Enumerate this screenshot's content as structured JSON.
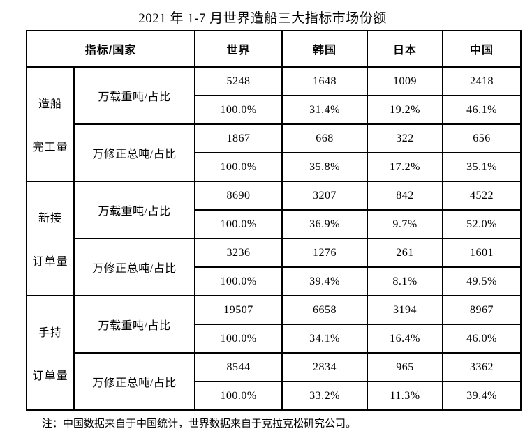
{
  "title": "2021 年 1-7 月世界造船三大指标市场份额",
  "table": {
    "header": {
      "indicator_country": "指标/国家",
      "columns": [
        "世界",
        "韩国",
        "日本",
        "中国"
      ]
    },
    "groups": [
      {
        "name_lines": [
          "造船",
          "完工量"
        ],
        "metrics": [
          {
            "label": "万载重吨/占比",
            "values": [
              "5248",
              "1648",
              "1009",
              "2418"
            ],
            "shares": [
              "100.0%",
              "31.4%",
              "19.2%",
              "46.1%"
            ]
          },
          {
            "label": "万修正总吨/占比",
            "values": [
              "1867",
              "668",
              "322",
              "656"
            ],
            "shares": [
              "100.0%",
              "35.8%",
              "17.2%",
              "35.1%"
            ]
          }
        ]
      },
      {
        "name_lines": [
          "新接",
          "订单量"
        ],
        "metrics": [
          {
            "label": "万载重吨/占比",
            "values": [
              "8690",
              "3207",
              "842",
              "4522"
            ],
            "shares": [
              "100.0%",
              "36.9%",
              "9.7%",
              "52.0%"
            ]
          },
          {
            "label": "万修正总吨/占比",
            "values": [
              "3236",
              "1276",
              "261",
              "1601"
            ],
            "shares": [
              "100.0%",
              "39.4%",
              "8.1%",
              "49.5%"
            ]
          }
        ]
      },
      {
        "name_lines": [
          "手持",
          "订单量"
        ],
        "metrics": [
          {
            "label": "万载重吨/占比",
            "values": [
              "19507",
              "6658",
              "3194",
              "8967"
            ],
            "shares": [
              "100.0%",
              "34.1%",
              "16.4%",
              "46.0%"
            ]
          },
          {
            "label": "万修正总吨/占比",
            "values": [
              "8544",
              "2834",
              "965",
              "3362"
            ],
            "shares": [
              "100.0%",
              "33.2%",
              "11.3%",
              "39.4%"
            ]
          }
        ]
      }
    ]
  },
  "note": "注：中国数据来自于中国统计，世界数据来自于克拉克松研究公司。",
  "colors": {
    "border": "#000000",
    "background": "#ffffff",
    "text": "#000000"
  }
}
